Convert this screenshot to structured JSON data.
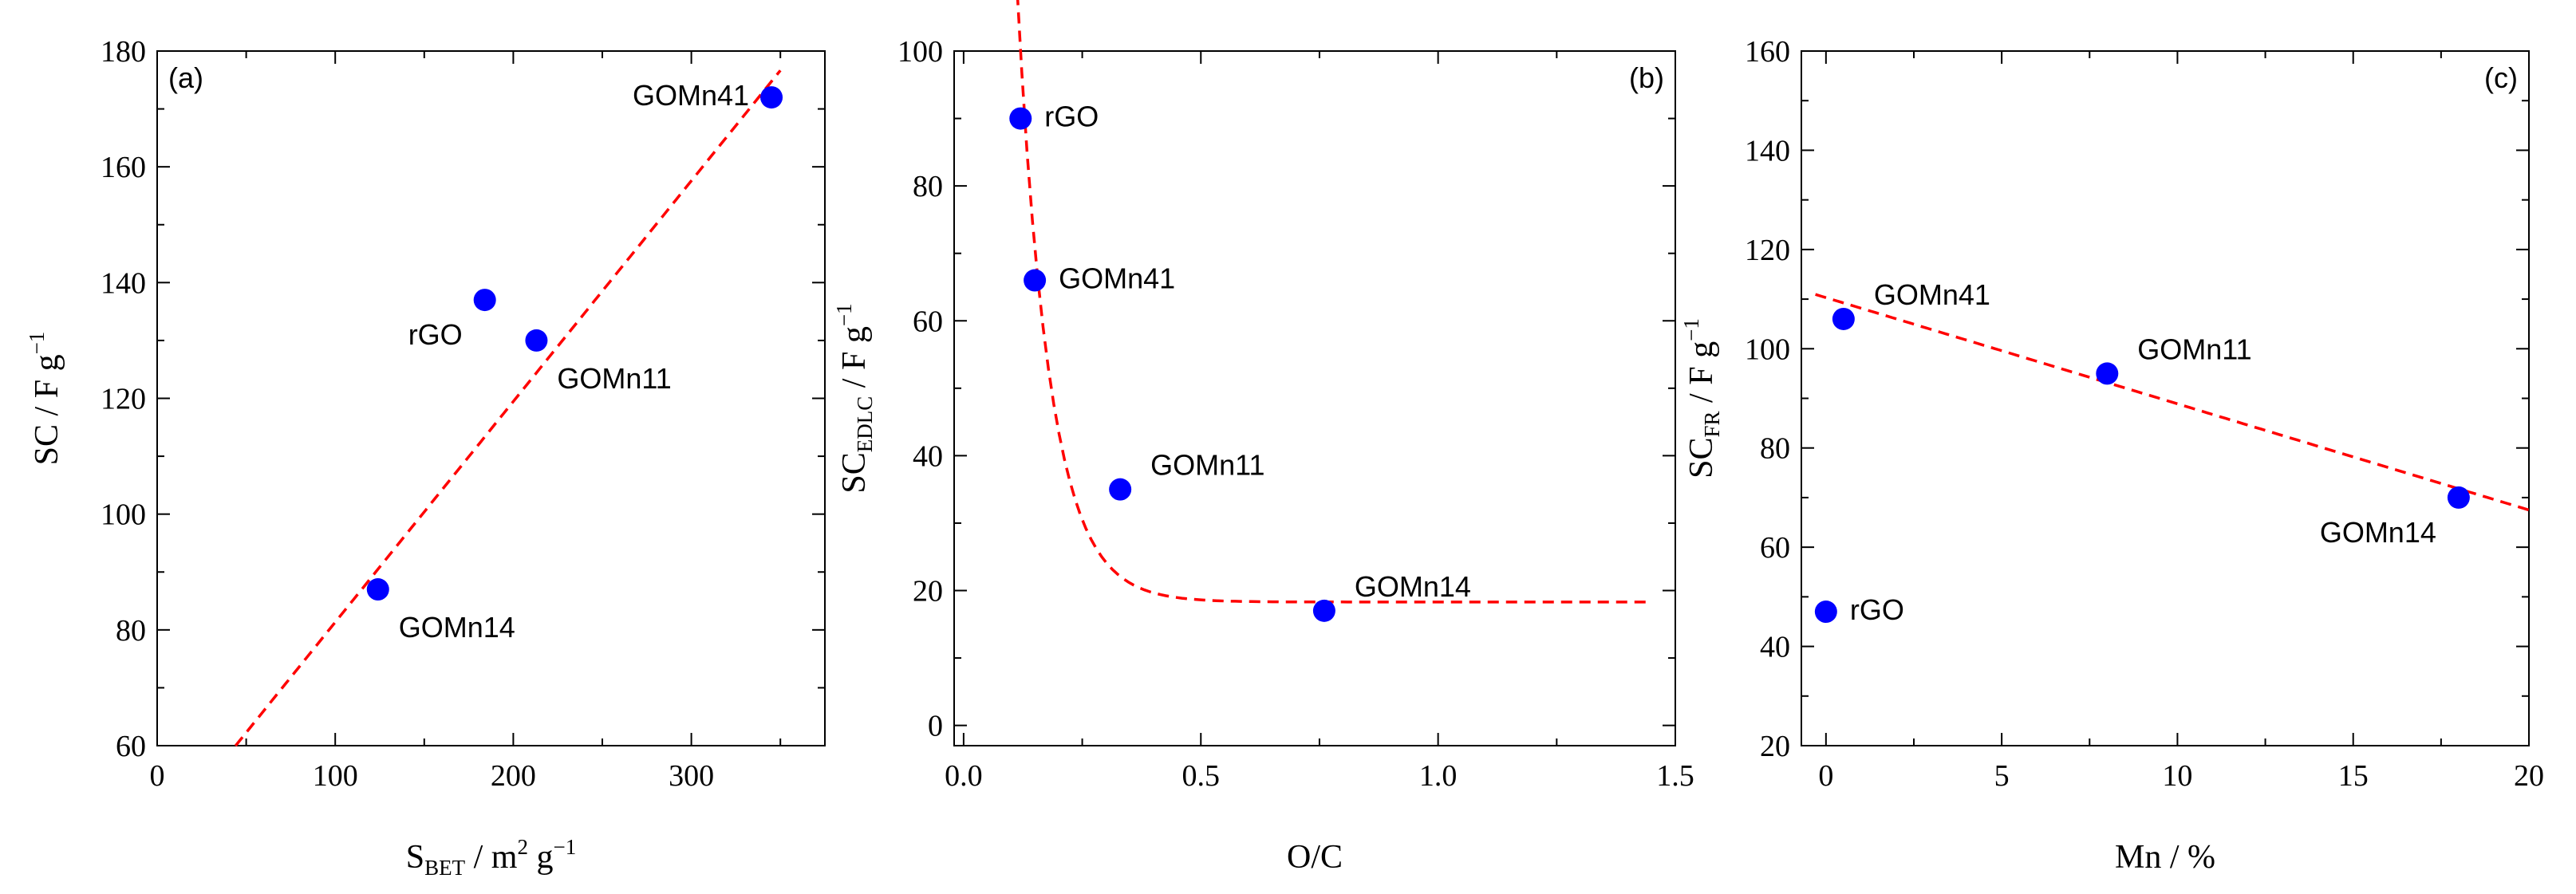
{
  "colors": {
    "point": "#0000ff",
    "fit": "#ff0000",
    "axis": "#000000"
  },
  "chart_data": [
    {
      "type": "scatter",
      "panel_label": "(a)",
      "xlabel_main": "S",
      "xlabel_sub": "BET",
      "xlabel_rest": " / m",
      "xlabel_sup": "2",
      "xlabel_tail": " g",
      "xlabel_sup2": "−1",
      "ylabel_main": "SC / F g",
      "ylabel_sup": "−1",
      "xlim": [
        0,
        375
      ],
      "ylim": [
        60,
        180
      ],
      "xticks": [
        0,
        100,
        200,
        300
      ],
      "xtick_labels": [
        "0",
        "100",
        "200",
        "300"
      ],
      "xminor": [
        50,
        150,
        250,
        350
      ],
      "yticks": [
        60,
        80,
        100,
        120,
        140,
        160,
        180
      ],
      "ytick_labels": [
        "60",
        "80",
        "100",
        "120",
        "140",
        "160",
        "180"
      ],
      "yminor": [
        70,
        90,
        110,
        130,
        150,
        170
      ],
      "points": [
        {
          "name": "GOMn41",
          "x": 345,
          "y": 172,
          "label_pos": "left"
        },
        {
          "name": "rGO",
          "x": 184,
          "y": 137,
          "label_pos": "lower-left"
        },
        {
          "name": "GOMn11",
          "x": 213,
          "y": 130,
          "label_pos": "lower-right"
        },
        {
          "name": "GOMn14",
          "x": 124,
          "y": 87,
          "label_pos": "lower-right"
        }
      ],
      "fit": {
        "kind": "linear",
        "x_range": [
          44,
          350
        ],
        "slope": 0.3813,
        "intercept": 43.2
      }
    },
    {
      "type": "scatter",
      "panel_label": "(b)",
      "xlabel_main": "O/C",
      "ylabel_main": "SC",
      "ylabel_sub": "EDLC",
      "ylabel_rest": " / F g",
      "ylabel_sup": "−1",
      "xlim": [
        -0.02,
        1.5
      ],
      "ylim": [
        -3,
        100
      ],
      "xticks": [
        0,
        0.5,
        1.0,
        1.5
      ],
      "xtick_labels": [
        "0.0",
        "0.5",
        "1.0",
        "1.5"
      ],
      "xminor": [
        0.25,
        0.75,
        1.25
      ],
      "yticks": [
        0,
        20,
        40,
        60,
        80,
        100
      ],
      "ytick_labels": [
        "0",
        "20",
        "40",
        "60",
        "80",
        "100"
      ],
      "yminor": [
        10,
        30,
        50,
        70,
        90
      ],
      "points": [
        {
          "name": "rGO",
          "x": 0.12,
          "y": 90,
          "label_pos": "right"
        },
        {
          "name": "GOMn41",
          "x": 0.15,
          "y": 66,
          "label_pos": "right"
        },
        {
          "name": "GOMn11",
          "x": 0.33,
          "y": 35,
          "label_pos": "upper-right"
        },
        {
          "name": "GOMn14",
          "x": 0.76,
          "y": 17,
          "label_pos": "upper-right"
        }
      ],
      "fit": {
        "kind": "exp_decay",
        "x_range": [
          0.1,
          1.45
        ],
        "y0": 18.3,
        "A": 470,
        "t": 0.0685
      }
    },
    {
      "type": "scatter",
      "panel_label": "(c)",
      "xlabel_main": "Mn / %",
      "ylabel_main": "SC",
      "ylabel_sub": "FR",
      "ylabel_rest": " / F g",
      "ylabel_sup": "−1",
      "xlim": [
        -0.7,
        20
      ],
      "ylim": [
        20,
        160
      ],
      "xticks": [
        0,
        5,
        10,
        15,
        20
      ],
      "xtick_labels": [
        "0",
        "5",
        "10",
        "15",
        "20"
      ],
      "xminor": [
        2.5,
        7.5,
        12.5,
        17.5
      ],
      "yticks": [
        20,
        40,
        60,
        80,
        100,
        120,
        140,
        160
      ],
      "ytick_labels": [
        "20",
        "40",
        "60",
        "80",
        "100",
        "120",
        "140",
        "160"
      ],
      "yminor": [
        30,
        50,
        70,
        90,
        110,
        130,
        150
      ],
      "points": [
        {
          "name": "GOMn41",
          "x": 0.5,
          "y": 106,
          "label_pos": "upper-right"
        },
        {
          "name": "GOMn11",
          "x": 8,
          "y": 95,
          "label_pos": "upper-right"
        },
        {
          "name": "GOMn14",
          "x": 18,
          "y": 70,
          "label_pos": "lower-left"
        },
        {
          "name": "rGO",
          "x": 0,
          "y": 47,
          "label_pos": "right"
        }
      ],
      "fit": {
        "kind": "linear",
        "x_range": [
          -0.3,
          20
        ],
        "slope": -2.14,
        "intercept": 110.3
      }
    }
  ]
}
